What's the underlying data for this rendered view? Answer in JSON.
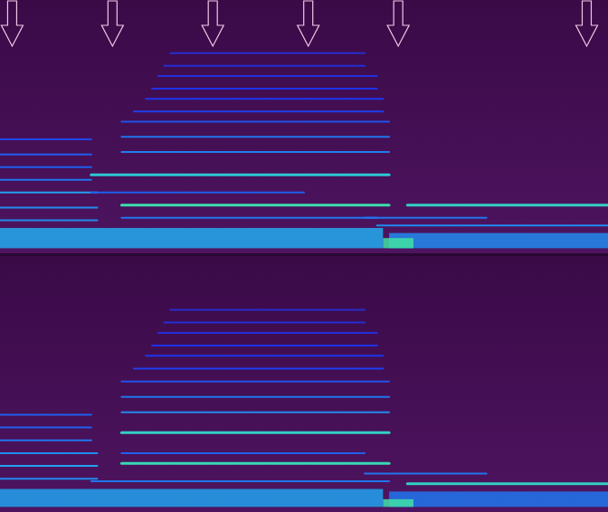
{
  "chart_data": {
    "type": "spectrogram",
    "tick_labels": false,
    "xlim": [
      0,
      1
    ],
    "ylim": [
      0,
      1
    ],
    "markers": [
      0.02,
      0.185,
      0.35,
      0.507,
      0.655,
      0.965
    ],
    "channels": [
      {
        "tracks": [
          {
            "x": [
              0.0,
              0.15
            ],
            "y": 0.45,
            "level": 0.4
          },
          {
            "x": [
              0.0,
              0.15
            ],
            "y": 0.39,
            "level": 0.45
          },
          {
            "x": [
              0.0,
              0.15
            ],
            "y": 0.34,
            "level": 0.45
          },
          {
            "x": [
              0.0,
              0.15
            ],
            "y": 0.29,
            "level": 0.5
          },
          {
            "x": [
              0.0,
              0.16
            ],
            "y": 0.24,
            "level": 0.6
          },
          {
            "x": [
              0.0,
              0.16
            ],
            "y": 0.18,
            "level": 0.55
          },
          {
            "x": [
              0.0,
              0.16
            ],
            "y": 0.13,
            "level": 0.55
          },
          {
            "x": [
              0.28,
              0.6
            ],
            "y": 0.79,
            "level": 0.28
          },
          {
            "x": [
              0.27,
              0.6
            ],
            "y": 0.74,
            "level": 0.3
          },
          {
            "x": [
              0.26,
              0.62
            ],
            "y": 0.7,
            "level": 0.32
          },
          {
            "x": [
              0.25,
              0.62
            ],
            "y": 0.65,
            "level": 0.34
          },
          {
            "x": [
              0.24,
              0.63
            ],
            "y": 0.61,
            "level": 0.36
          },
          {
            "x": [
              0.22,
              0.63
            ],
            "y": 0.56,
            "level": 0.38
          },
          {
            "x": [
              0.2,
              0.64
            ],
            "y": 0.52,
            "level": 0.42
          },
          {
            "x": [
              0.2,
              0.64
            ],
            "y": 0.46,
            "level": 0.5
          },
          {
            "x": [
              0.2,
              0.64
            ],
            "y": 0.4,
            "level": 0.52
          },
          {
            "x": [
              0.15,
              0.64
            ],
            "y": 0.31,
            "level": 0.75
          },
          {
            "x": [
              0.15,
              0.5
            ],
            "y": 0.24,
            "level": 0.45
          },
          {
            "x": [
              0.2,
              0.64
            ],
            "y": 0.19,
            "level": 0.88
          },
          {
            "x": [
              0.2,
              0.62
            ],
            "y": 0.14,
            "level": 0.5
          },
          {
            "x": [
              0.67,
              1.0
            ],
            "y": 0.19,
            "level": 0.8
          },
          {
            "x": [
              0.6,
              0.8
            ],
            "y": 0.14,
            "level": 0.5
          },
          {
            "x": [
              0.62,
              1.0
            ],
            "y": 0.11,
            "level": 0.55
          }
        ],
        "bands": [
          {
            "x": [
              0.0,
              0.63
            ],
            "y": [
              0.02,
              0.1
            ],
            "level": 0.62
          },
          {
            "x": [
              0.64,
              1.0
            ],
            "y": [
              0.02,
              0.08
            ],
            "level": 0.55
          },
          {
            "x": [
              0.63,
              0.68
            ],
            "y": [
              0.02,
              0.06
            ],
            "level": 0.92
          }
        ]
      },
      {
        "tracks": [
          {
            "x": [
              0.0,
              0.15
            ],
            "y": 0.38,
            "level": 0.45
          },
          {
            "x": [
              0.0,
              0.15
            ],
            "y": 0.33,
            "level": 0.45
          },
          {
            "x": [
              0.0,
              0.15
            ],
            "y": 0.28,
            "level": 0.5
          },
          {
            "x": [
              0.0,
              0.16
            ],
            "y": 0.23,
            "level": 0.55
          },
          {
            "x": [
              0.0,
              0.16
            ],
            "y": 0.18,
            "level": 0.6
          },
          {
            "x": [
              0.0,
              0.16
            ],
            "y": 0.13,
            "level": 0.55
          },
          {
            "x": [
              0.28,
              0.6
            ],
            "y": 0.79,
            "level": 0.28
          },
          {
            "x": [
              0.27,
              0.6
            ],
            "y": 0.74,
            "level": 0.3
          },
          {
            "x": [
              0.26,
              0.62
            ],
            "y": 0.7,
            "level": 0.32
          },
          {
            "x": [
              0.25,
              0.62
            ],
            "y": 0.65,
            "level": 0.34
          },
          {
            "x": [
              0.24,
              0.63
            ],
            "y": 0.61,
            "level": 0.36
          },
          {
            "x": [
              0.22,
              0.63
            ],
            "y": 0.56,
            "level": 0.38
          },
          {
            "x": [
              0.2,
              0.64
            ],
            "y": 0.51,
            "level": 0.42
          },
          {
            "x": [
              0.2,
              0.64
            ],
            "y": 0.45,
            "level": 0.5
          },
          {
            "x": [
              0.2,
              0.64
            ],
            "y": 0.39,
            "level": 0.55
          },
          {
            "x": [
              0.2,
              0.64
            ],
            "y": 0.31,
            "level": 0.8
          },
          {
            "x": [
              0.2,
              0.6
            ],
            "y": 0.23,
            "level": 0.45
          },
          {
            "x": [
              0.2,
              0.64
            ],
            "y": 0.19,
            "level": 0.85
          },
          {
            "x": [
              0.15,
              0.64
            ],
            "y": 0.12,
            "level": 0.5
          },
          {
            "x": [
              0.67,
              1.0
            ],
            "y": 0.11,
            "level": 0.8
          },
          {
            "x": [
              0.6,
              0.8
            ],
            "y": 0.15,
            "level": 0.5
          }
        ],
        "bands": [
          {
            "x": [
              0.0,
              0.63
            ],
            "y": [
              0.02,
              0.09
            ],
            "level": 0.6
          },
          {
            "x": [
              0.64,
              1.0
            ],
            "y": [
              0.02,
              0.08
            ],
            "level": 0.5
          },
          {
            "x": [
              0.63,
              0.68
            ],
            "y": [
              0.02,
              0.05
            ],
            "level": 0.9
          }
        ]
      }
    ]
  }
}
